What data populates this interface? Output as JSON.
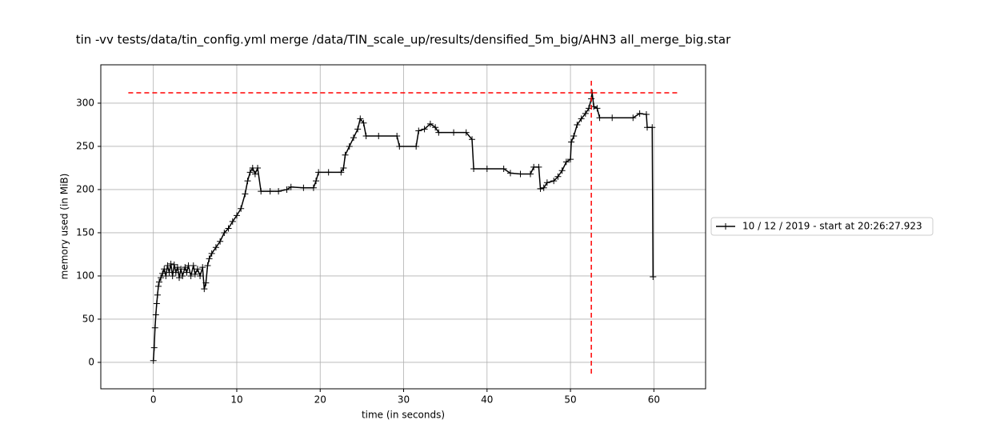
{
  "chart_data": {
    "type": "line",
    "title": "tin -vv tests/data/tin_config.yml merge /data/TIN_scale_up/results/densified_5m_big/AHN3 all_merge_big.star",
    "x_label": "time (in seconds)",
    "y_label": "memory used (in MiB)",
    "xlim": [
      -6.3,
      66.2
    ],
    "ylim": [
      -30.6,
      344.4
    ],
    "xticks": [
      0,
      10,
      20,
      30,
      40,
      50,
      60
    ],
    "yticks": [
      0,
      50,
      100,
      150,
      200,
      250,
      300
    ],
    "grid": true,
    "legend_position": "right",
    "series": [
      {
        "name": "10 / 12 / 2019 - start at 20:26:27.923",
        "color": "#000000",
        "x": [
          0,
          0.1,
          0.2,
          0.3,
          0.4,
          0.5,
          0.6,
          0.7,
          0.9,
          1.1,
          1.3,
          1.5,
          1.7,
          1.9,
          2.1,
          2.3,
          2.5,
          2.7,
          2.9,
          3.1,
          3.3,
          3.5,
          3.8,
          4.0,
          4.2,
          4.5,
          4.8,
          5.0,
          5.3,
          5.6,
          5.9,
          6.1,
          6.3,
          6.5,
          6.7,
          7.0,
          7.5,
          8.0,
          8.5,
          9.0,
          9.5,
          10.0,
          10.5,
          11.0,
          11.3,
          11.6,
          11.9,
          12.2,
          12.5,
          12.9,
          14,
          15,
          16,
          16.5,
          18,
          19.2,
          19.5,
          19.8,
          21,
          22.5,
          22.8,
          23,
          23.5,
          24,
          24.5,
          24.8,
          25.2,
          25.5,
          27,
          29.2,
          29.5,
          31.5,
          31.8,
          32.5,
          33.2,
          33.8,
          34.2,
          36,
          37.5,
          38.2,
          38.4,
          40,
          42,
          42.8,
          44,
          45.2,
          45.6,
          46.2,
          46.4,
          46.8,
          47.2,
          48,
          48.5,
          49,
          49.5,
          50,
          50.1,
          50.4,
          50.8,
          51.3,
          51.8,
          52.2,
          52.5,
          52.6,
          52.8,
          53.2,
          53.5,
          55,
          57.5,
          58.3,
          59.1,
          59.2,
          59.8,
          59.9
        ],
        "values": [
          2,
          17,
          40,
          55,
          68,
          78,
          88,
          93,
          98,
          103,
          108,
          100,
          112,
          104,
          114,
          100,
          113,
          104,
          110,
          98,
          108,
          100,
          110,
          104,
          112,
          100,
          112,
          102,
          108,
          100,
          110,
          85,
          92,
          112,
          120,
          126,
          133,
          140,
          150,
          155,
          163,
          170,
          178,
          195,
          210,
          220,
          225,
          218,
          225,
          198,
          198,
          198,
          200,
          203,
          202,
          202,
          210,
          220,
          220,
          220,
          225,
          240,
          250,
          260,
          270,
          282,
          277,
          262,
          262,
          262,
          250,
          250,
          268,
          270,
          276,
          272,
          266,
          266,
          266,
          258,
          224,
          224,
          224,
          219,
          218,
          218,
          226,
          226,
          201,
          202,
          208,
          210,
          215,
          222,
          232,
          235,
          255,
          262,
          275,
          282,
          288,
          294,
          305,
          312,
          296,
          294,
          283,
          283,
          283,
          288,
          287,
          272,
          272,
          99
        ]
      }
    ],
    "reference_lines": [
      {
        "y": 312,
        "x": [
          -3,
          63
        ],
        "color": "#ff0000"
      },
      {
        "x": 52.5,
        "y": [
          -13,
          327
        ],
        "color": "#ff0000"
      }
    ]
  }
}
